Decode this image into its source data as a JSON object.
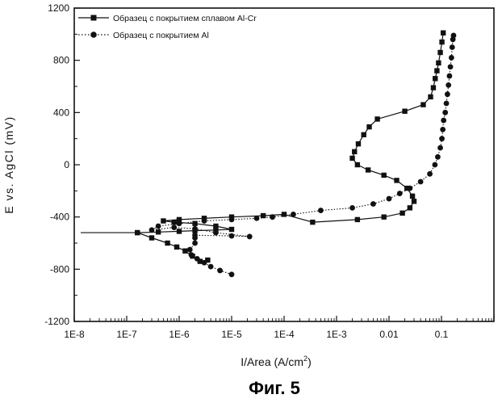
{
  "figure": {
    "caption": "Фиг. 5"
  },
  "chart_data": {
    "type": "line",
    "title": "",
    "xlabel": "I/Area (A/cm²)",
    "xlabel_main": "I/Area (A/cm",
    "xlabel_sup": "2",
    "xlabel_tail": ")",
    "ylabel": "E vs. AgCl (mV)",
    "x_scale": "log",
    "xlim": [
      1e-08,
      1
    ],
    "ylim": [
      -1200,
      1200
    ],
    "x_ticks": [
      1e-08,
      1e-07,
      1e-06,
      1e-05,
      0.0001,
      0.001,
      0.01,
      0.1
    ],
    "x_tick_labels": [
      "1E-8",
      "1E-7",
      "1E-6",
      "1E-5",
      "1E-4",
      "1E-3",
      "0.01",
      "0.1"
    ],
    "y_ticks": [
      1200,
      800,
      400,
      0,
      -400,
      -800,
      -1200
    ],
    "y_tick_labels": [
      "1200",
      "800",
      "400",
      "0",
      "-400",
      "-800",
      "-1200"
    ],
    "grid": false,
    "legend_position": "top-left",
    "series": [
      {
        "name": "Образец с покрытием сплавом Al-Cr",
        "marker": "square",
        "line": "solid",
        "points": [
          [
            3.5e-06,
            -730
          ],
          [
            2.5e-06,
            -740
          ],
          [
            1.8e-06,
            -700
          ],
          [
            1.3e-06,
            -660
          ],
          [
            9e-07,
            -630
          ],
          [
            6e-07,
            -600
          ],
          [
            3e-07,
            -560
          ],
          [
            1.6e-07,
            -520
          ],
          [
            1.6e-07,
            -520
          ],
          [
            4e-07,
            -515
          ],
          [
            1e-06,
            -510
          ],
          [
            2e-06,
            -505
          ],
          [
            5e-06,
            -500
          ],
          [
            1e-05,
            -495
          ],
          [
            5e-06,
            -470
          ],
          [
            2e-06,
            -450
          ],
          [
            8e-07,
            -440
          ],
          [
            5e-07,
            -430
          ],
          [
            1e-06,
            -420
          ],
          [
            3e-06,
            -410
          ],
          [
            1e-05,
            -400
          ],
          [
            4e-05,
            -390
          ],
          [
            0.0001,
            -380
          ],
          [
            0.00035,
            -440
          ],
          [
            0.0025,
            -420
          ],
          [
            0.008,
            -400
          ],
          [
            0.018,
            -370
          ],
          [
            0.025,
            -330
          ],
          [
            0.03,
            -280
          ],
          [
            0.028,
            -240
          ],
          [
            0.022,
            -180
          ],
          [
            0.014,
            -120
          ],
          [
            0.008,
            -80
          ],
          [
            0.004,
            -40
          ],
          [
            0.0025,
            0
          ],
          [
            0.002,
            50
          ],
          [
            0.0022,
            100
          ],
          [
            0.0026,
            160
          ],
          [
            0.0033,
            230
          ],
          [
            0.0042,
            290
          ],
          [
            0.006,
            350
          ],
          [
            0.02,
            410
          ],
          [
            0.045,
            460
          ],
          [
            0.062,
            520
          ],
          [
            0.07,
            590
          ],
          [
            0.076,
            660
          ],
          [
            0.082,
            720
          ],
          [
            0.088,
            780
          ],
          [
            0.095,
            860
          ],
          [
            0.102,
            940
          ],
          [
            0.108,
            1010
          ]
        ]
      },
      {
        "name": "Образец с покрытием Al",
        "marker": "circle",
        "line": "dotted",
        "points": [
          [
            1e-05,
            -840
          ],
          [
            6e-06,
            -810
          ],
          [
            4e-06,
            -780
          ],
          [
            3e-06,
            -750
          ],
          [
            2.2e-06,
            -720
          ],
          [
            1.7e-06,
            -690
          ],
          [
            1.6e-06,
            -650
          ],
          [
            2e-06,
            -600
          ],
          [
            2e-06,
            -560
          ],
          [
            2e-06,
            -540
          ],
          [
            1e-05,
            -545
          ],
          [
            2.2e-05,
            -550
          ],
          [
            5e-06,
            -520
          ],
          [
            2e-06,
            -490
          ],
          [
            8e-07,
            -480
          ],
          [
            3e-07,
            -500
          ],
          [
            4e-07,
            -470
          ],
          [
            1e-06,
            -450
          ],
          [
            3e-06,
            -430
          ],
          [
            1e-05,
            -420
          ],
          [
            3e-05,
            -410
          ],
          [
            6e-05,
            -400
          ],
          [
            0.00015,
            -380
          ],
          [
            0.0005,
            -350
          ],
          [
            0.002,
            -330
          ],
          [
            0.005,
            -300
          ],
          [
            0.01,
            -260
          ],
          [
            0.016,
            -220
          ],
          [
            0.025,
            -180
          ],
          [
            0.04,
            -130
          ],
          [
            0.06,
            -70
          ],
          [
            0.075,
            0
          ],
          [
            0.085,
            60
          ],
          [
            0.095,
            130
          ],
          [
            0.102,
            200
          ],
          [
            0.106,
            270
          ],
          [
            0.11,
            340
          ],
          [
            0.118,
            400
          ],
          [
            0.124,
            470
          ],
          [
            0.13,
            540
          ],
          [
            0.136,
            610
          ],
          [
            0.142,
            680
          ],
          [
            0.148,
            750
          ],
          [
            0.155,
            820
          ],
          [
            0.16,
            900
          ],
          [
            0.165,
            960
          ],
          [
            0.17,
            990
          ]
        ]
      }
    ]
  }
}
